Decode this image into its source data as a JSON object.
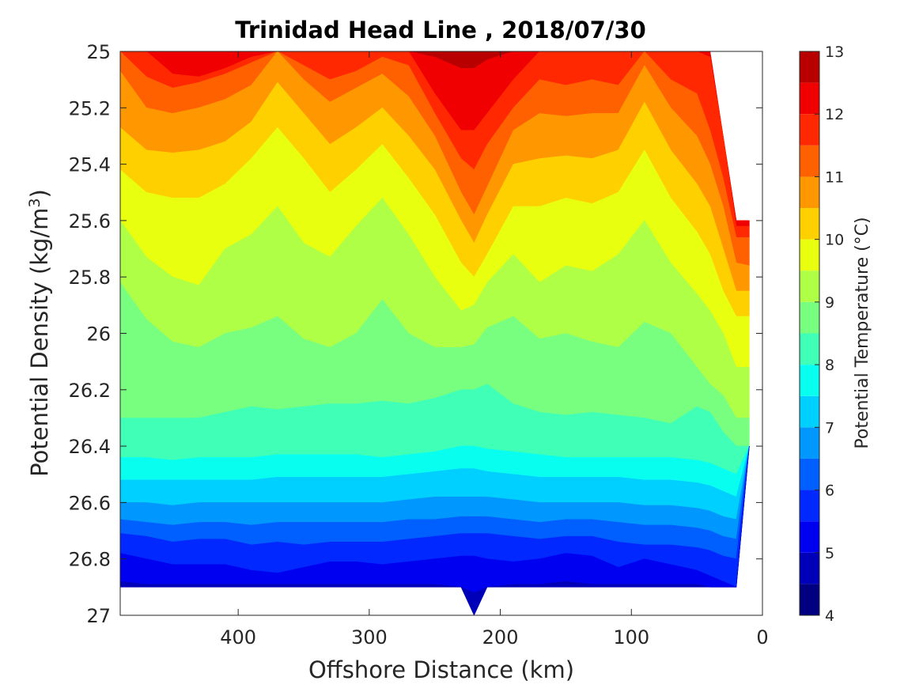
{
  "chart_data": {
    "type": "contour",
    "title": "Trinidad Head Line , 2018/07/30",
    "xlabel": "Offshore Distance (km)",
    "ylabel_main": "Potential Density (kg/m",
    "ylabel_sup": "3",
    "ylabel_tail": ")",
    "xlim": [
      490,
      0
    ],
    "ylim": [
      25,
      27
    ],
    "x_reversed": true,
    "y_reversed": true,
    "x_ticks": [
      "400",
      "300",
      "200",
      "100",
      "0"
    ],
    "x_tick_values": [
      400,
      300,
      200,
      100,
      0
    ],
    "y_ticks": [
      "25",
      "25.2",
      "25.4",
      "25.6",
      "25.8",
      "26",
      "26.2",
      "26.4",
      "26.6",
      "26.8",
      "27"
    ],
    "y_tick_values": [
      25,
      25.2,
      25.4,
      25.6,
      25.8,
      26,
      26.2,
      26.4,
      26.6,
      26.8,
      27
    ],
    "colorbar": {
      "label": "Potential Temperature (°C)",
      "ticks": [
        "4",
        "5",
        "6",
        "7",
        "8",
        "9",
        "10",
        "11",
        "12",
        "13"
      ],
      "range": [
        4,
        13
      ],
      "levels": [
        4,
        4.5,
        5,
        5.5,
        6,
        6.5,
        7,
        7.5,
        8,
        8.5,
        9,
        9.5,
        10,
        10.5,
        11,
        11.5,
        12,
        12.5,
        13
      ],
      "colors": [
        "#000080",
        "#0000b8",
        "#0000f0",
        "#0028ff",
        "#0060ff",
        "#0098ff",
        "#00d0ff",
        "#08ffef",
        "#40ffb7",
        "#78ff7f",
        "#b0ff47",
        "#e8ff0f",
        "#ffd000",
        "#ff9800",
        "#ff6000",
        "#ff2800",
        "#f00000",
        "#b80000"
      ]
    },
    "data_extent": {
      "x_stations": [
        490,
        470,
        450,
        430,
        410,
        390,
        370,
        350,
        330,
        310,
        290,
        270,
        250,
        230,
        220,
        210,
        190,
        170,
        150,
        130,
        110,
        90,
        70,
        50,
        40,
        30,
        20,
        10
      ],
      "bottom_density": [
        26.9,
        26.9,
        26.9,
        26.9,
        26.9,
        26.9,
        26.9,
        26.9,
        26.9,
        26.9,
        26.9,
        26.9,
        26.9,
        26.9,
        27.0,
        26.9,
        26.9,
        26.9,
        26.9,
        26.9,
        26.9,
        26.9,
        26.9,
        26.9,
        26.9,
        26.9,
        26.9,
        26.4
      ],
      "top_density": [
        25,
        25,
        25,
        25,
        25,
        25,
        25,
        25,
        25,
        25,
        25,
        25,
        25,
        25,
        25,
        25,
        25,
        25,
        25,
        25,
        25,
        25,
        25,
        25,
        25,
        25.3,
        25.6,
        25.6
      ]
    },
    "isotherms": [
      {
        "level": 12.5,
        "y": [
          25.0,
          25.0,
          25.0,
          25.0,
          25.0,
          25.0,
          25.0,
          25.0,
          25.0,
          25.0,
          25.0,
          25.0,
          25.02,
          25.06,
          25.06,
          25.03,
          25.0,
          25.0,
          25.0,
          25.0,
          25.0,
          25.0,
          25.0,
          25.0,
          25.0,
          25.0,
          25.0,
          25.0
        ]
      },
      {
        "level": 12,
        "y": [
          25.0,
          25.0,
          25.08,
          25.09,
          25.06,
          25.02,
          25.0,
          25.0,
          25.0,
          25.0,
          25.0,
          25.0,
          25.15,
          25.28,
          25.28,
          25.22,
          25.1,
          25.0,
          25.0,
          25.0,
          25.0,
          25.0,
          25.0,
          25.0,
          25.02,
          25.3,
          25.62,
          25.62
        ]
      },
      {
        "level": 11.5,
        "y": [
          25.0,
          25.09,
          25.13,
          25.11,
          25.08,
          25.04,
          25.0,
          25.05,
          25.1,
          25.07,
          25.02,
          25.05,
          25.22,
          25.38,
          25.42,
          25.33,
          25.2,
          25.1,
          25.12,
          25.1,
          25.12,
          25.0,
          25.1,
          25.15,
          25.28,
          25.45,
          25.66,
          25.66
        ]
      },
      {
        "level": 11,
        "y": [
          25.07,
          25.2,
          25.22,
          25.2,
          25.17,
          25.12,
          25.0,
          25.1,
          25.18,
          25.13,
          25.08,
          25.16,
          25.3,
          25.5,
          25.58,
          25.48,
          25.28,
          25.22,
          25.23,
          25.22,
          25.22,
          25.05,
          25.2,
          25.3,
          25.4,
          25.55,
          25.75,
          25.76
        ]
      },
      {
        "level": 10.5,
        "y": [
          25.27,
          25.35,
          25.36,
          25.35,
          25.32,
          25.25,
          25.11,
          25.22,
          25.33,
          25.27,
          25.2,
          25.3,
          25.42,
          25.6,
          25.68,
          25.58,
          25.4,
          25.38,
          25.37,
          25.38,
          25.35,
          25.18,
          25.35,
          25.47,
          25.55,
          25.7,
          25.85,
          25.85
        ]
      },
      {
        "level": 10,
        "y": [
          25.42,
          25.5,
          25.52,
          25.52,
          25.47,
          25.38,
          25.27,
          25.38,
          25.5,
          25.42,
          25.33,
          25.45,
          25.58,
          25.75,
          25.8,
          25.72,
          25.55,
          25.55,
          25.52,
          25.54,
          25.5,
          25.35,
          25.52,
          25.64,
          25.72,
          25.85,
          25.94,
          25.94
        ]
      },
      {
        "level": 9.5,
        "y": [
          25.6,
          25.73,
          25.8,
          25.83,
          25.7,
          25.65,
          25.55,
          25.68,
          25.73,
          25.62,
          25.52,
          25.65,
          25.8,
          25.92,
          25.9,
          25.82,
          25.72,
          25.82,
          25.76,
          25.78,
          25.72,
          25.6,
          25.75,
          25.86,
          25.92,
          26.0,
          26.12,
          26.12
        ]
      },
      {
        "level": 9,
        "y": [
          25.82,
          25.95,
          26.03,
          26.05,
          26.0,
          25.98,
          25.94,
          26.02,
          26.05,
          26.0,
          25.88,
          26.0,
          26.05,
          26.05,
          26.04,
          25.98,
          25.94,
          26.02,
          26.0,
          26.03,
          26.05,
          25.96,
          26.0,
          26.12,
          26.18,
          26.22,
          26.3,
          26.3
        ]
      },
      {
        "level": 8.5,
        "y": [
          26.3,
          26.3,
          26.3,
          26.3,
          26.28,
          26.26,
          26.27,
          26.26,
          26.25,
          26.25,
          26.24,
          26.25,
          26.23,
          26.2,
          26.2,
          26.18,
          26.25,
          26.28,
          26.29,
          26.28,
          26.29,
          26.3,
          26.32,
          26.26,
          26.28,
          26.35,
          26.4,
          26.4
        ]
      },
      {
        "level": 8,
        "y": [
          26.44,
          26.44,
          26.45,
          26.44,
          26.44,
          26.44,
          26.43,
          26.43,
          26.43,
          26.43,
          26.44,
          26.43,
          26.42,
          26.4,
          26.4,
          26.41,
          26.42,
          26.43,
          26.44,
          26.44,
          26.44,
          26.44,
          26.44,
          26.45,
          26.46,
          26.48,
          26.5,
          26.5
        ]
      },
      {
        "level": 7.5,
        "y": [
          26.52,
          26.52,
          26.52,
          26.52,
          26.52,
          26.52,
          26.51,
          26.51,
          26.51,
          26.51,
          26.51,
          26.5,
          26.49,
          26.48,
          26.48,
          26.49,
          26.5,
          26.51,
          26.51,
          26.51,
          26.51,
          26.52,
          26.52,
          26.53,
          26.54,
          26.56,
          26.58,
          26.58
        ]
      },
      {
        "level": 7,
        "y": [
          26.6,
          26.6,
          26.61,
          26.6,
          26.6,
          26.6,
          26.6,
          26.6,
          26.6,
          26.6,
          26.6,
          26.59,
          26.58,
          26.58,
          26.58,
          26.58,
          26.59,
          26.6,
          26.6,
          26.6,
          26.6,
          26.61,
          26.61,
          26.62,
          26.63,
          26.65,
          26.66,
          26.66
        ]
      },
      {
        "level": 6.5,
        "y": [
          26.66,
          26.67,
          26.68,
          26.67,
          26.67,
          26.68,
          26.67,
          26.67,
          26.67,
          26.67,
          26.67,
          26.66,
          26.66,
          26.65,
          26.65,
          26.65,
          26.66,
          26.67,
          26.66,
          26.66,
          26.67,
          26.68,
          26.68,
          26.69,
          26.7,
          26.72,
          26.73,
          26.73
        ]
      },
      {
        "level": 6,
        "y": [
          26.71,
          26.72,
          26.74,
          26.73,
          26.73,
          26.75,
          26.74,
          26.75,
          26.74,
          26.74,
          26.74,
          26.73,
          26.72,
          26.71,
          26.71,
          26.71,
          26.72,
          26.73,
          26.72,
          26.72,
          26.74,
          26.75,
          26.75,
          26.76,
          26.77,
          26.79,
          26.8,
          26.8
        ]
      },
      {
        "level": 5.5,
        "y": [
          26.78,
          26.8,
          26.82,
          26.82,
          26.82,
          26.84,
          26.85,
          26.83,
          26.81,
          26.81,
          26.82,
          26.81,
          26.8,
          26.79,
          26.79,
          26.8,
          26.81,
          26.8,
          26.78,
          26.79,
          26.83,
          26.8,
          26.82,
          26.84,
          26.86,
          26.88,
          26.9,
          26.9
        ]
      },
      {
        "level": 5,
        "y": [
          26.88,
          26.89,
          26.89,
          26.89,
          26.89,
          26.89,
          26.89,
          26.89,
          26.89,
          26.89,
          26.89,
          26.89,
          26.89,
          26.9,
          26.92,
          26.9,
          26.89,
          26.89,
          26.88,
          26.89,
          26.89,
          26.89,
          26.89,
          26.89,
          26.9,
          26.9,
          26.9,
          26.9
        ]
      }
    ]
  }
}
